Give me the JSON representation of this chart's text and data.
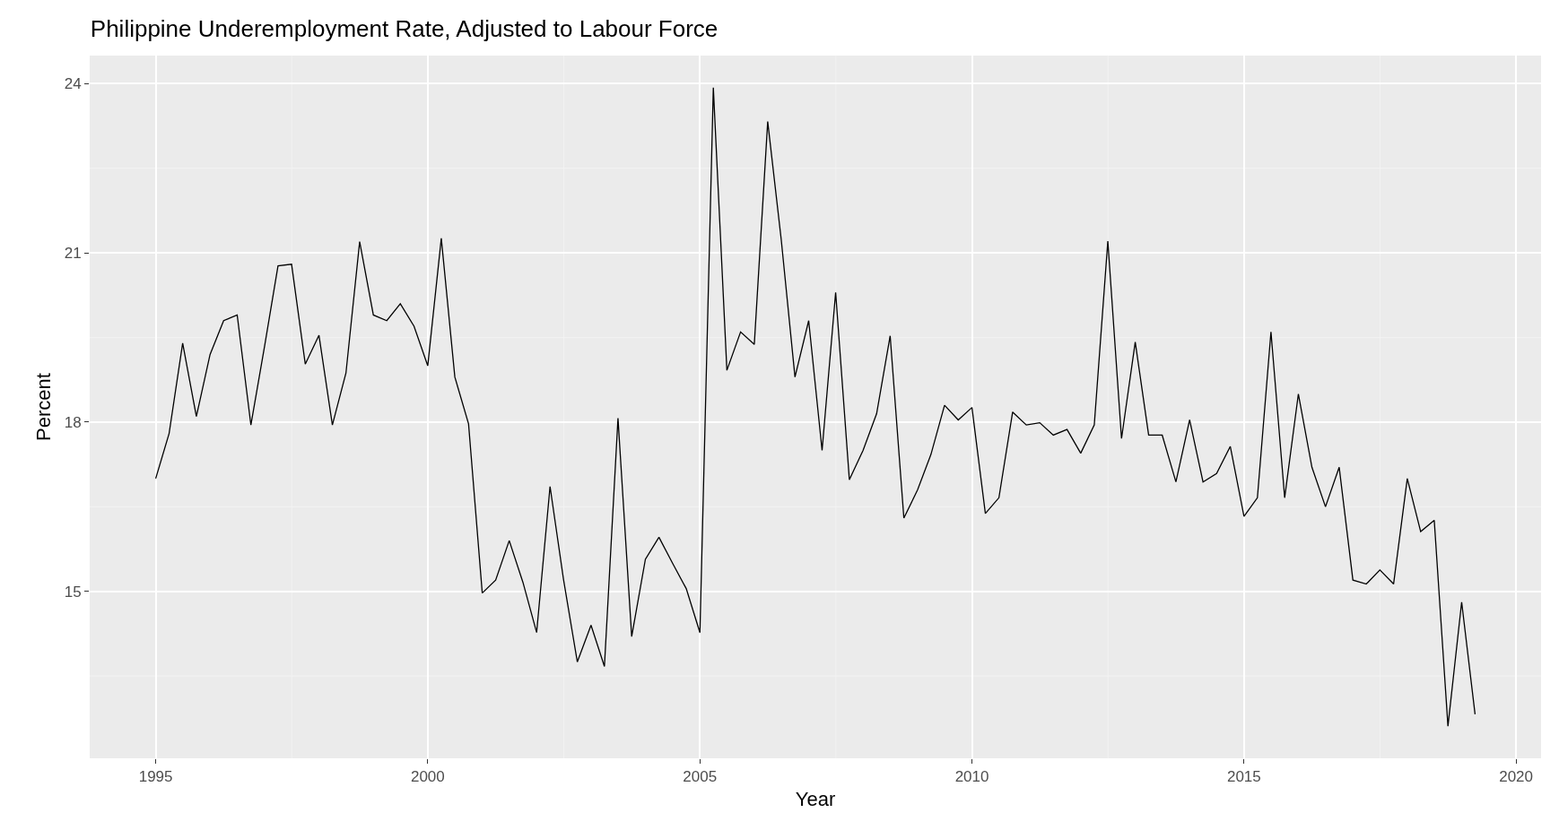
{
  "chart_data": {
    "type": "line",
    "title": "Philippine Underemployment Rate, Adjusted to Labour Force",
    "xlabel": "Year",
    "ylabel": "Percent",
    "x": [
      "1995-01",
      "1995-04",
      "1995-07",
      "1995-10",
      "1996-01",
      "1996-04",
      "1996-07",
      "1996-10",
      "1997-01",
      "1997-04",
      "1997-07",
      "1997-10",
      "1998-01",
      "1998-04",
      "1998-07",
      "1998-10",
      "1999-01",
      "1999-04",
      "1999-07",
      "1999-10",
      "2000-01",
      "2000-04",
      "2000-07",
      "2000-10",
      "2001-01",
      "2001-04",
      "2001-07",
      "2001-10",
      "2002-01",
      "2002-04",
      "2002-07",
      "2002-10",
      "2003-01",
      "2003-04",
      "2003-07",
      "2003-10",
      "2004-01",
      "2004-04",
      "2004-07",
      "2004-10",
      "2005-01",
      "2005-04",
      "2005-07",
      "2005-10",
      "2006-01",
      "2006-04",
      "2006-07",
      "2006-10",
      "2007-01",
      "2007-04",
      "2007-07",
      "2007-10",
      "2008-01",
      "2008-04",
      "2008-07",
      "2008-10",
      "2009-01",
      "2009-04",
      "2009-07",
      "2009-10",
      "2010-01",
      "2010-04",
      "2010-07",
      "2010-10",
      "2011-01",
      "2011-04",
      "2011-07",
      "2011-10",
      "2012-01",
      "2012-04",
      "2012-07",
      "2012-10",
      "2013-01",
      "2013-04",
      "2013-07",
      "2013-10",
      "2014-01",
      "2014-04",
      "2014-07",
      "2014-10",
      "2015-01",
      "2015-04",
      "2015-07",
      "2015-10",
      "2016-01",
      "2016-04",
      "2016-07",
      "2016-10",
      "2017-01",
      "2017-04",
      "2017-07",
      "2017-10",
      "2018-01",
      "2018-04",
      "2018-07",
      "2018-10",
      "2019-01",
      "2019-04"
    ],
    "series": [
      {
        "color": "#000000",
        "values": [
          17.0,
          17.8,
          19.4,
          18.1,
          19.2,
          19.8,
          19.9,
          17.95,
          19.35,
          20.77,
          20.8,
          19.03,
          19.54,
          17.95,
          18.87,
          21.2,
          19.9,
          19.8,
          20.1,
          19.7,
          19.0,
          21.26,
          18.8,
          17.97,
          14.97,
          15.2,
          15.9,
          15.16,
          14.27,
          16.86,
          15.2,
          13.75,
          14.4,
          13.67,
          18.07,
          14.2,
          15.57,
          15.96,
          15.5,
          15.05,
          14.27,
          23.93,
          18.92,
          19.6,
          19.38,
          23.33,
          21.23,
          18.8,
          19.8,
          17.5,
          20.3,
          16.98,
          17.5,
          18.15,
          19.53,
          16.3,
          16.8,
          17.43,
          18.3,
          18.04,
          18.26,
          16.38,
          16.66,
          18.18,
          17.95,
          17.99,
          17.77,
          17.87,
          17.45,
          17.95,
          21.21,
          17.71,
          19.42,
          17.77,
          17.77,
          16.94,
          18.04,
          16.94,
          17.09,
          17.57,
          16.33,
          16.66,
          19.6,
          16.66,
          18.5,
          17.2,
          16.5,
          17.2,
          15.2,
          15.13,
          15.38,
          15.13,
          17.0,
          16.06,
          16.26,
          12.61,
          14.81,
          12.82
        ]
      }
    ],
    "xlim": [
      "1993-10-15",
      "2020-06-17"
    ],
    "xticks": [
      {
        "value": "1995-01-01",
        "label": "1995"
      },
      {
        "value": "2000-01-01",
        "label": "2000"
      },
      {
        "value": "2005-01-01",
        "label": "2005"
      },
      {
        "value": "2010-01-01",
        "label": "2010"
      },
      {
        "value": "2015-01-01",
        "label": "2015"
      },
      {
        "value": "2020-01-01",
        "label": "2020"
      }
    ],
    "ylim": [
      12.04,
      24.5
    ],
    "yticks": [
      15,
      18,
      21,
      24
    ],
    "grid": true,
    "line_style": "solid"
  }
}
